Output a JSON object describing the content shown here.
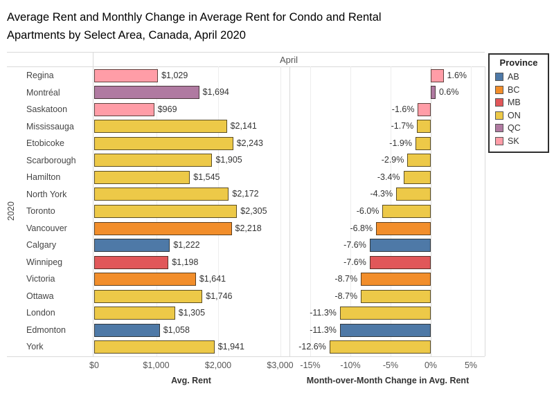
{
  "title": {
    "line1": "Average Rent and Monthly Change in Average Rent for Condo and Rental",
    "line2": "Apartments by Select Area, Canada, April 2020"
  },
  "header": {
    "column_label": "April",
    "row_group_label": "2020"
  },
  "legend": {
    "title": "Province",
    "items": [
      {
        "label": "AB",
        "color": "#4E79A7"
      },
      {
        "label": "BC",
        "color": "#F28E2B"
      },
      {
        "label": "MB",
        "color": "#E15759"
      },
      {
        "label": "ON",
        "color": "#EDC948"
      },
      {
        "label": "QC",
        "color": "#B07AA1"
      },
      {
        "label": "SK",
        "color": "#FF9DA7"
      }
    ]
  },
  "axes": {
    "left": {
      "title": "Avg. Rent",
      "tick_labels": [
        "$0",
        "$1,000",
        "$2,000",
        "$3,000"
      ],
      "tick_values": [
        0,
        1000,
        2000,
        3000
      ],
      "range": [
        0,
        3150
      ]
    },
    "right": {
      "title": "Month-over-Month Change in Avg. Rent",
      "tick_labels": [
        "-15%",
        "-10%",
        "-5%",
        "0%",
        "5%"
      ],
      "tick_values": [
        -15,
        -10,
        -5,
        0,
        5
      ],
      "range": [
        -17.5,
        6.7
      ]
    }
  },
  "chart_data": {
    "type": "bar",
    "orientation": "horizontal",
    "title": "Average Rent and Monthly Change in Average Rent for Condo and Rental Apartments by Select Area, Canada, April 2020",
    "column_header": "April",
    "row_group": "2020",
    "categories": [
      "Regina",
      "Montréal",
      "Saskatoon",
      "Mississauga",
      "Etobicoke",
      "Scarborough",
      "Hamilton",
      "North York",
      "Toronto",
      "Vancouver",
      "Calgary",
      "Winnipeg",
      "Victoria",
      "Ottawa",
      "London",
      "Edmonton",
      "York"
    ],
    "provinces": [
      "SK",
      "QC",
      "SK",
      "ON",
      "ON",
      "ON",
      "ON",
      "ON",
      "ON",
      "BC",
      "AB",
      "MB",
      "BC",
      "ON",
      "ON",
      "AB",
      "ON"
    ],
    "province_colors": {
      "AB": "#4E79A7",
      "BC": "#F28E2B",
      "MB": "#E15759",
      "ON": "#EDC948",
      "QC": "#B07AA1",
      "SK": "#FF9DA7"
    },
    "series": [
      {
        "name": "Avg. Rent",
        "values": [
          1029,
          1694,
          969,
          2141,
          2243,
          1905,
          1545,
          2172,
          2305,
          2218,
          1222,
          1198,
          1641,
          1746,
          1305,
          1058,
          1941
        ],
        "labels": [
          "$1,029",
          "$1,694",
          "$969",
          "$2,141",
          "$2,243",
          "$1,905",
          "$1,545",
          "$2,172",
          "$2,305",
          "$2,218",
          "$1,222",
          "$1,198",
          "$1,641",
          "$1,746",
          "$1,305",
          "$1,058",
          "$1,941"
        ],
        "xlim": [
          0,
          3150
        ]
      },
      {
        "name": "Month-over-Month Change in Avg. Rent",
        "values": [
          1.6,
          0.6,
          -1.6,
          -1.7,
          -1.9,
          -2.9,
          -3.4,
          -4.3,
          -6.0,
          -6.8,
          -7.6,
          -7.6,
          -8.7,
          -8.7,
          -11.3,
          -11.3,
          -12.6
        ],
        "labels": [
          "1.6%",
          "0.6%",
          "-1.6%",
          "-1.7%",
          "-1.9%",
          "-2.9%",
          "-3.4%",
          "-4.3%",
          "-6.0%",
          "-6.8%",
          "-7.6%",
          "-7.6%",
          "-8.7%",
          "-8.7%",
          "-11.3%",
          "-11.3%",
          "-12.6%"
        ],
        "xlim": [
          -17.5,
          6.7
        ]
      }
    ],
    "legend_title": "Province",
    "legend_position": "top-right",
    "grid": true
  }
}
